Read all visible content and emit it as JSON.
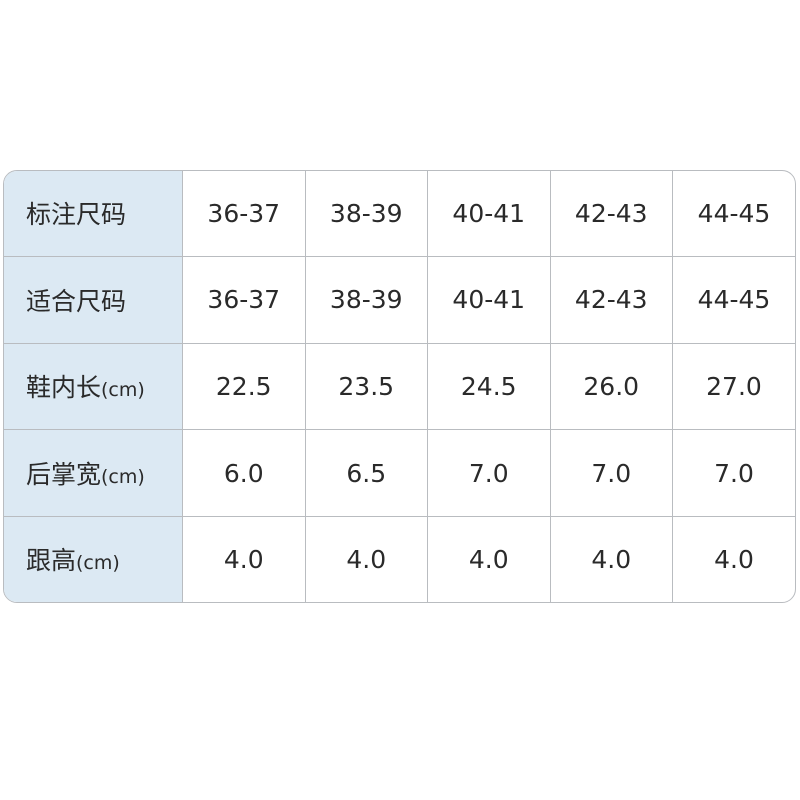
{
  "table": {
    "rows": [
      {
        "label": "标注尺码",
        "unit": "",
        "values": [
          "36-37",
          "38-39",
          "40-41",
          "42-43",
          "44-45"
        ]
      },
      {
        "label": "适合尺码",
        "unit": "",
        "values": [
          "36-37",
          "38-39",
          "40-41",
          "42-43",
          "44-45"
        ]
      },
      {
        "label": "鞋内长",
        "unit": "(cm)",
        "values": [
          "22.5",
          "23.5",
          "24.5",
          "26.0",
          "27.0"
        ]
      },
      {
        "label": "后掌宽",
        "unit": "(cm)",
        "values": [
          "6.0",
          "6.5",
          "7.0",
          "7.0",
          "7.0"
        ]
      },
      {
        "label": "跟高",
        "unit": "(cm)",
        "values": [
          "4.0",
          "4.0",
          "4.0",
          "4.0",
          "4.0"
        ]
      }
    ]
  },
  "colors": {
    "header_column_bg": "#dce9f3",
    "border": "#b9bcc0",
    "text": "#2a2a2a"
  }
}
